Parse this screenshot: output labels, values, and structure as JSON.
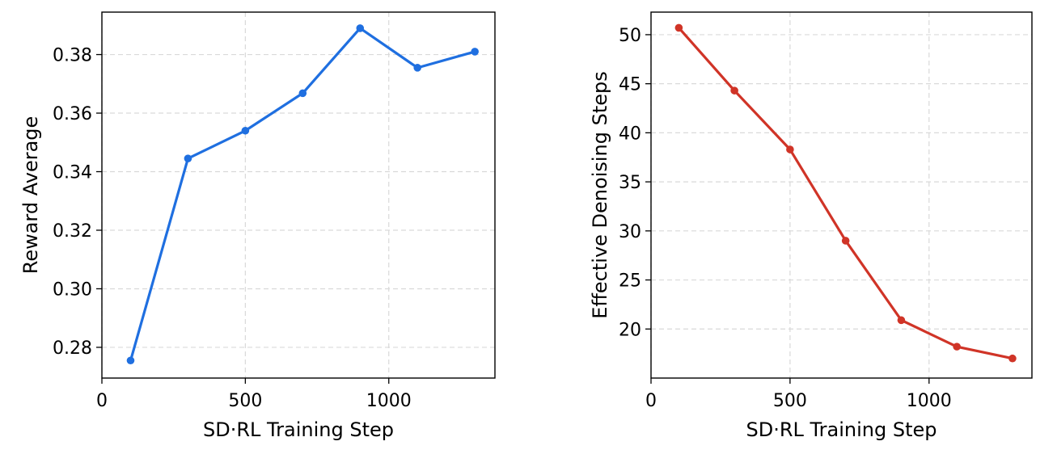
{
  "chart_data": [
    {
      "type": "line",
      "xlabel": "SD·RL Training Step",
      "ylabel": "Reward Average",
      "xlim": [
        0,
        1370
      ],
      "ylim": [
        0.2695,
        0.3945
      ],
      "x_ticks": [
        0,
        500,
        1000
      ],
      "x_tick_labels": [
        "0",
        "500",
        "1000"
      ],
      "y_ticks": [
        0.28,
        0.3,
        0.32,
        0.34,
        0.36,
        0.38
      ],
      "y_tick_labels": [
        "0.28",
        "0.30",
        "0.32",
        "0.34",
        "0.36",
        "0.38"
      ],
      "grid": true,
      "series": [
        {
          "x": [
            100,
            300,
            500,
            700,
            900,
            1100,
            1300
          ],
          "y": [
            0.2755,
            0.3445,
            0.354,
            0.3668,
            0.389,
            0.3755,
            0.381
          ],
          "color": "#1f6fe0",
          "marker": "circle"
        }
      ]
    },
    {
      "type": "line",
      "xlabel": "SD·RL Training Step",
      "ylabel": "Effective Denoising Steps",
      "xlim": [
        0,
        1370
      ],
      "ylim": [
        15.0,
        52.3
      ],
      "x_ticks": [
        0,
        500,
        1000
      ],
      "x_tick_labels": [
        "0",
        "500",
        "1000"
      ],
      "y_ticks": [
        20,
        25,
        30,
        35,
        40,
        45,
        50
      ],
      "y_tick_labels": [
        "20",
        "25",
        "30",
        "35",
        "40",
        "45",
        "50"
      ],
      "grid": true,
      "series": [
        {
          "x": [
            100,
            300,
            500,
            700,
            900,
            1100,
            1300
          ],
          "y": [
            50.7,
            44.3,
            38.3,
            29.0,
            20.9,
            18.2,
            17.0
          ],
          "color": "#d03427",
          "marker": "circle"
        }
      ]
    }
  ]
}
